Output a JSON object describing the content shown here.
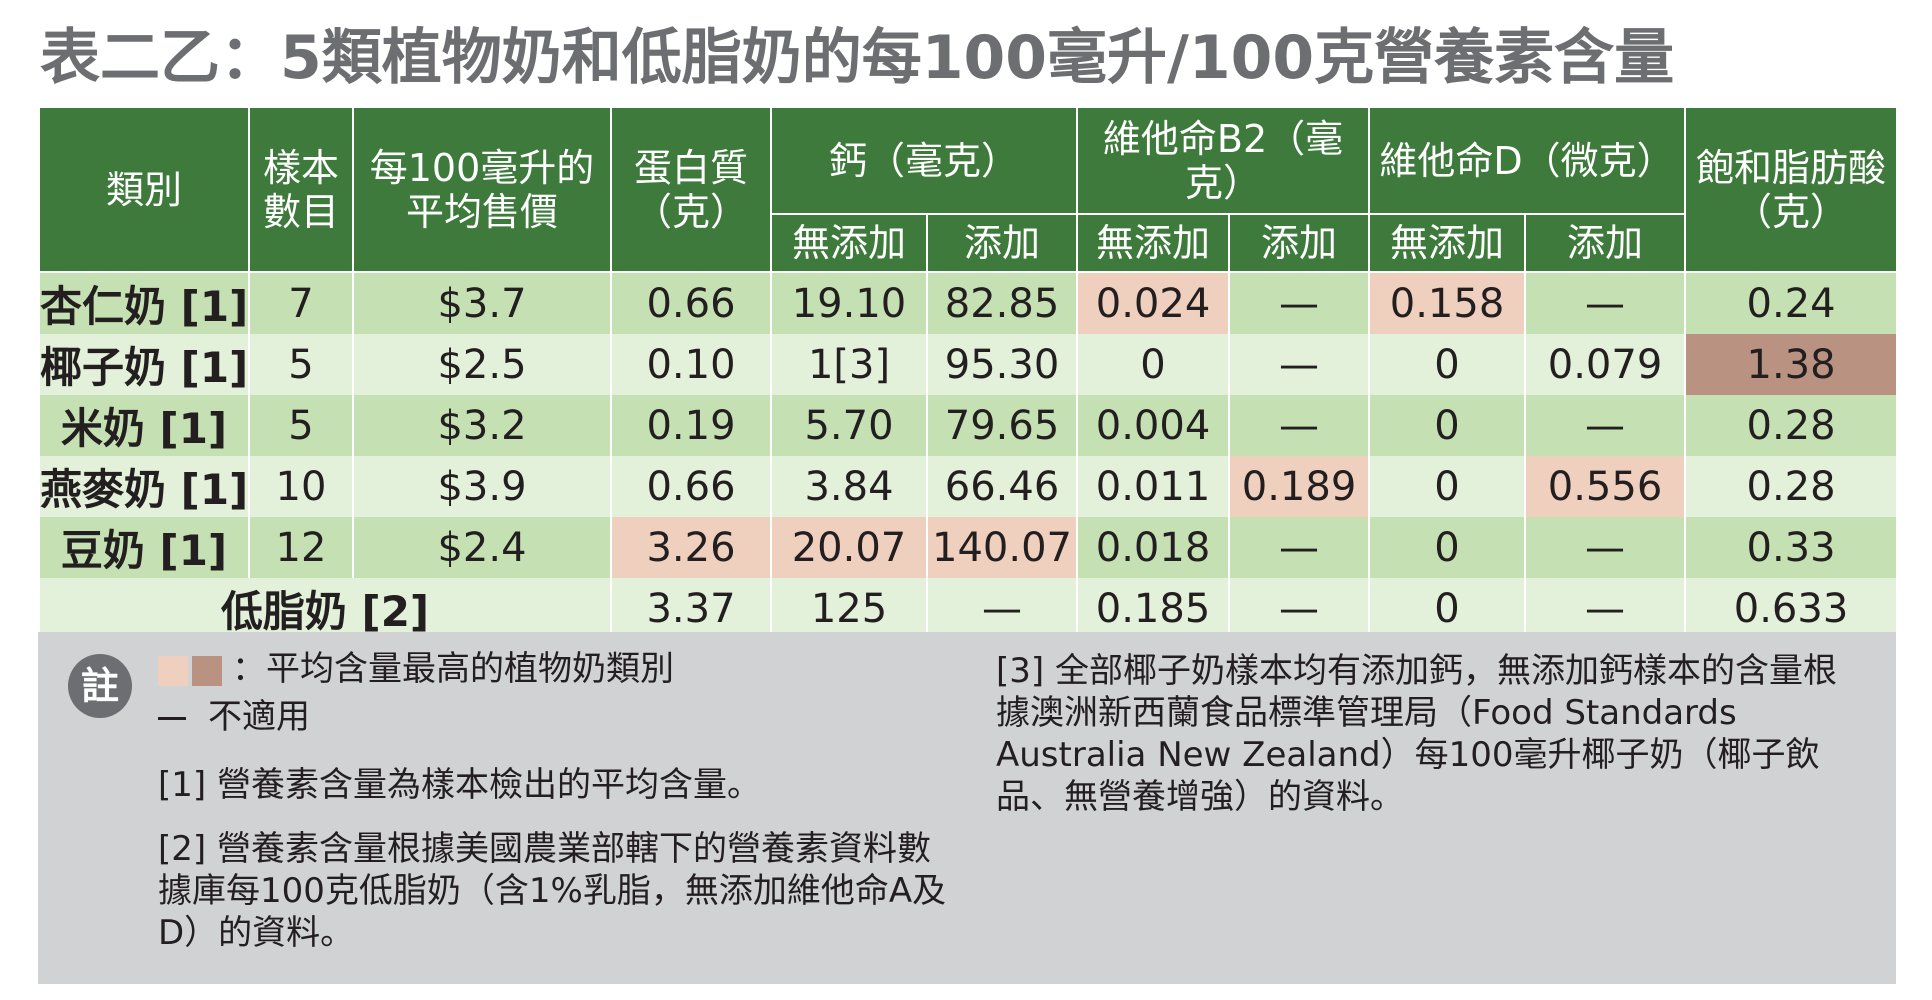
{
  "title": "表二乙：5類植物奶和低脂奶的每100毫升/100克營養素含量",
  "table": {
    "headers": {
      "category": "類別",
      "samples": "樣本數目",
      "price": "每100毫升的平均售價",
      "protein": "蛋白質（克）",
      "calcium": "鈣（毫克）",
      "vitb2": "維他命B2（毫克）",
      "vitd": "維他命D（微克）",
      "satfat": "飽和脂肪酸（克）",
      "no_added": "無添加",
      "added": "添加"
    },
    "rows": [
      {
        "category": "杏仁奶 [1]",
        "samples": "7",
        "price": "$3.7",
        "protein": "0.66",
        "ca_no": "19.10",
        "ca_add": "82.85",
        "b2_no": "0.024",
        "b2_add": "—",
        "d_no": "0.158",
        "d_add": "—",
        "satfat": "0.24"
      },
      {
        "category": "椰子奶 [1]",
        "samples": "5",
        "price": "$2.5",
        "protein": "0.10",
        "ca_no": "1[3]",
        "ca_add": "95.30",
        "b2_no": "0",
        "b2_add": "—",
        "d_no": "0",
        "d_add": "0.079",
        "satfat": "1.38"
      },
      {
        "category": "米奶 [1]",
        "samples": "5",
        "price": "$3.2",
        "protein": "0.19",
        "ca_no": "5.70",
        "ca_add": "79.65",
        "b2_no": "0.004",
        "b2_add": "—",
        "d_no": "0",
        "d_add": "—",
        "satfat": "0.28"
      },
      {
        "category": "燕麥奶 [1]",
        "samples": "10",
        "price": "$3.9",
        "protein": "0.66",
        "ca_no": "3.84",
        "ca_add": "66.46",
        "b2_no": "0.011",
        "b2_add": "0.189",
        "d_no": "0",
        "d_add": "0.556",
        "satfat": "0.28"
      },
      {
        "category": "豆奶 [1]",
        "samples": "12",
        "price": "$2.4",
        "protein": "3.26",
        "ca_no": "20.07",
        "ca_add": "140.07",
        "b2_no": "0.018",
        "b2_add": "—",
        "d_no": "0",
        "d_add": "—",
        "satfat": "0.33"
      }
    ],
    "lowfat": {
      "category": "低脂奶 [2]",
      "protein": "3.37",
      "ca_no": "125",
      "ca_add": "—",
      "b2_no": "0.185",
      "b2_add": "—",
      "d_no": "0",
      "d_add": "—",
      "satfat": "0.633"
    },
    "highlight_colors": {
      "highest": "#efcfbd",
      "highest_dark": "#b99282"
    }
  },
  "notes": {
    "badge": "註",
    "legend_highlight": "：平均含量最高的植物奶類別",
    "legend_na": "不適用",
    "note1": "[1]  營養素含量為樣本檢出的平均含量。",
    "note2": "[2]  營養素含量根據美國農業部轄下的營養素資料數據庫每100克低脂奶（含1%乳脂，無添加維他命A及D）的資料。",
    "note3": "[3]  全部椰子奶樣本均有添加鈣，無添加鈣樣本的含量根據澳洲新西蘭食品標準管理局（Food Standards Australia New Zealand）每100毫升椰子奶（椰子飲品、無營養增強）的資料。"
  },
  "colors": {
    "header_green": "#3d7a3b",
    "row_odd": "#c5e1b3",
    "row_even": "#e3f0da",
    "notes_bg": "#d1d2d4",
    "title_gray": "#6d6e71"
  }
}
